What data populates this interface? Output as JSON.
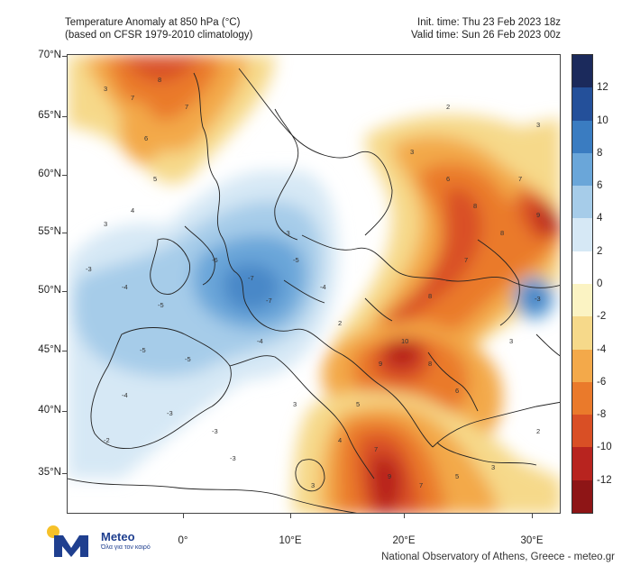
{
  "header": {
    "title": "Temperature Anomaly at 850 hPa (°C)",
    "subtitle": "(based on CFSR 1979-2010 climatology)",
    "init_time": "Init. time: Thu 23 Feb 2023 18z",
    "valid_time": "Valid time: Sun 26 Feb 2023 00z"
  },
  "map": {
    "lat_labels": [
      "70°N",
      "65°N",
      "60°N",
      "55°N",
      "50°N",
      "45°N",
      "40°N",
      "35°N"
    ],
    "lon_labels": [
      "0°",
      "10°E",
      "20°E",
      "30°E"
    ],
    "colorbar": {
      "labels": [
        "12",
        "10",
        "8",
        "6",
        "4",
        "2",
        "0",
        "-2",
        "-4",
        "-6",
        "-8",
        "-10",
        "-12"
      ],
      "colors": [
        "#1b2a5c",
        "#24509a",
        "#3a7cc1",
        "#6aa6d9",
        "#a6cce9",
        "#d6e8f5",
        "#ffffff",
        "#fbf3c3",
        "#f6d98a",
        "#f3a94a",
        "#ea7a2b",
        "#d94f25",
        "#b8241f",
        "#8e1516"
      ]
    }
  },
  "logo": {
    "word": "Meteo",
    "tagline": "Όλα για τον καιρό"
  },
  "credit": "National Observatory of Athens, Greece - meteo.gr"
}
